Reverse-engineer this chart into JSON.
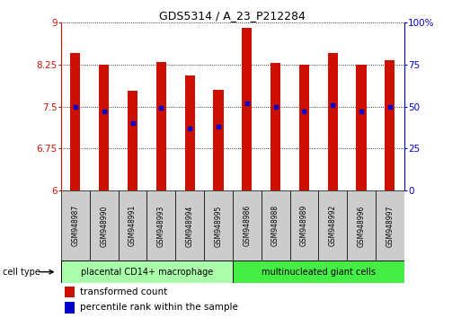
{
  "title": "GDS5314 / A_23_P212284",
  "samples": [
    "GSM948987",
    "GSM948990",
    "GSM948991",
    "GSM948993",
    "GSM948994",
    "GSM948995",
    "GSM948986",
    "GSM948988",
    "GSM948989",
    "GSM948992",
    "GSM948996",
    "GSM948997"
  ],
  "transformed_count": [
    8.45,
    8.25,
    7.78,
    8.3,
    8.05,
    7.8,
    8.9,
    8.28,
    8.25,
    8.45,
    8.25,
    8.32
  ],
  "percentile_rank": [
    50,
    47,
    40,
    49,
    37,
    38,
    52,
    50,
    47,
    51,
    47,
    50
  ],
  "group1_label": "placental CD14+ macrophage",
  "group2_label": "multinucleated giant cells",
  "group1_count": 6,
  "group2_count": 6,
  "ylim": [
    6,
    9
  ],
  "yticks": [
    6,
    6.75,
    7.5,
    8.25,
    9
  ],
  "ytick_labels": [
    "6",
    "6.75",
    "7.5",
    "8.25",
    "9"
  ],
  "right_yticks": [
    0,
    25,
    50,
    75,
    100
  ],
  "right_ytick_labels": [
    "0",
    "25",
    "50",
    "75",
    "100%"
  ],
  "bar_color": "#cc1100",
  "dot_color": "#0000cc",
  "group1_bg": "#aaffaa",
  "group2_bg": "#44ee44",
  "sample_bg": "#cccccc",
  "cell_type_label": "cell type",
  "legend1": "transformed count",
  "legend2": "percentile rank within the sample",
  "bar_width": 0.35
}
